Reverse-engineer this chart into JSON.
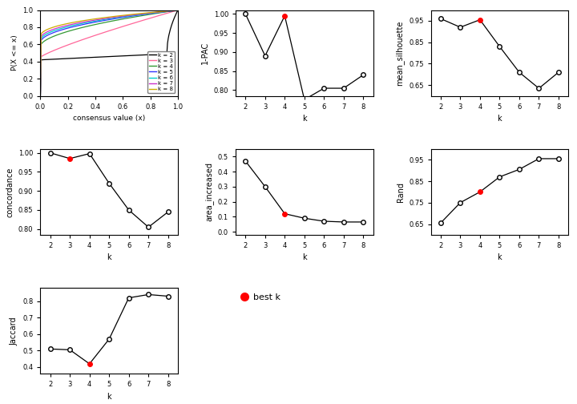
{
  "k_values": [
    2,
    3,
    4,
    5,
    6,
    7,
    8
  ],
  "pac_1minus": [
    1.0,
    0.89,
    0.995,
    0.775,
    0.805,
    0.805,
    0.84
  ],
  "mean_silhouette": [
    0.96,
    0.92,
    0.955,
    0.83,
    0.71,
    0.635,
    0.71
  ],
  "concordance": [
    1.0,
    0.985,
    0.998,
    0.92,
    0.85,
    0.805,
    0.845
  ],
  "area_increased": [
    0.47,
    0.3,
    0.12,
    0.09,
    0.07,
    0.065,
    0.065
  ],
  "rand": [
    0.655,
    0.75,
    0.8,
    0.87,
    0.905,
    0.955,
    0.955
  ],
  "jaccard": [
    0.51,
    0.505,
    0.42,
    0.57,
    0.82,
    0.84,
    0.83
  ],
  "best_k_pac": 4,
  "best_k_sil": 4,
  "best_k_conc": 3,
  "best_k_area": 4,
  "best_k_rand": 4,
  "best_k_jacc": 4,
  "cdf_colors": [
    "#000000",
    "#FF6699",
    "#339933",
    "#3333FF",
    "#00CCCC",
    "#CC33CC",
    "#CCAA00"
  ],
  "cdf_labels": [
    "k = 2",
    "k = 3",
    "k = 4",
    "k = 5",
    "k = 6",
    "k = 7",
    "k = 8"
  ],
  "line_color": "#000000",
  "open_dot_color": "#FFFFFF",
  "best_dot_color": "#FF0000",
  "bg_color": "#FFFFFF"
}
